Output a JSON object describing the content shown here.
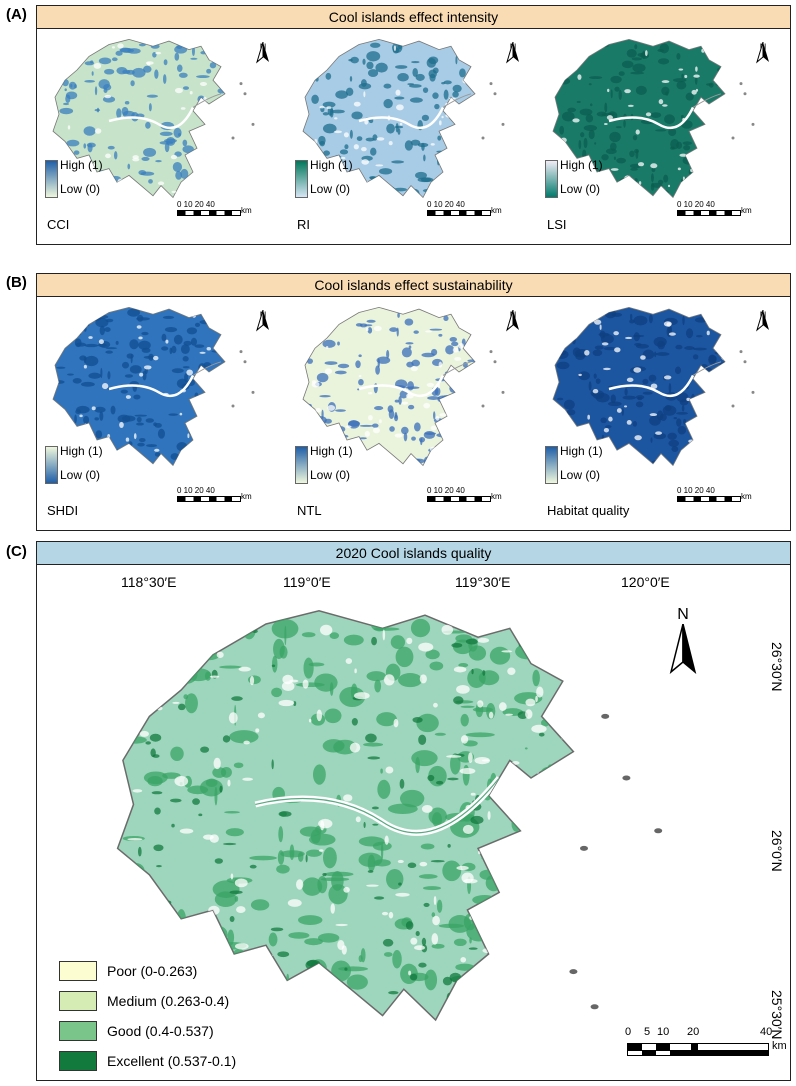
{
  "panels": {
    "a": {
      "label": "(A)",
      "title": "Cool islands effect intensity"
    },
    "b": {
      "label": "(B)",
      "title": "Cool islands effect sustainability"
    },
    "c": {
      "label": "(C)",
      "title": "2020 Cool islands quality"
    }
  },
  "maps": [
    {
      "name": "CCI",
      "high": "High (1)",
      "low": "Low (0)",
      "ramp_top": "#1f5fa8",
      "ramp_bottom": "#eef7dd",
      "fill": "#c7e3c9",
      "dark": "#3a7fbd"
    },
    {
      "name": "RI",
      "high": "High (1)",
      "low": "Low (0)",
      "ramp_top": "#00775a",
      "ramp_bottom": "#d6e6f4",
      "fill": "#a9cce6",
      "dark": "#1e6e8c"
    },
    {
      "name": "LSI",
      "high": "High (1)",
      "low": "Low (0)",
      "ramp_top": "#f1ecf6",
      "ramp_bottom": "#017a6c",
      "fill": "#1a7a68",
      "dark": "#0b5e50"
    },
    {
      "name": "SHDI",
      "high": "High (1)",
      "low": "Low (0)",
      "ramp_top": "#eef7dd",
      "ramp_bottom": "#1f5fa8",
      "fill": "#2f74bc",
      "dark": "#124d91"
    },
    {
      "name": "NTL",
      "high": "High (1)",
      "low": "Low (0)",
      "ramp_top": "#1f5fa8",
      "ramp_bottom": "#eef7dd",
      "fill": "#eaf4dc",
      "dark": "#3b6fba"
    },
    {
      "name": "Habitat quality",
      "high": "High (1)",
      "low": "Low (0)",
      "ramp_top": "#1f5fa8",
      "ramp_bottom": "#eef7dd",
      "fill": "#1d56a0",
      "dark": "#0e3f80"
    }
  ],
  "scale_small": {
    "ticks": "0 10 20      40",
    "unit": "km"
  },
  "north": "N",
  "main_map": {
    "lon_labels": [
      "118°30′E",
      "119°0′E",
      "119°30′E",
      "120°0′E"
    ],
    "lat_labels": [
      "26°30′N",
      "26°0′N",
      "25°30′N"
    ],
    "scale_ticks": [
      "0",
      "5",
      "10",
      "20",
      "40"
    ],
    "scale_unit": "km",
    "legend": [
      {
        "label": "Poor (0-0.263)",
        "color": "#fdfdd2"
      },
      {
        "label": "Medium (0.263-0.4)",
        "color": "#d5ecb4"
      },
      {
        "label": "Good (0.4-0.537)",
        "color": "#7ac58a"
      },
      {
        "label": "Excellent (0.537-0.1)",
        "color": "#127a3d"
      }
    ],
    "land_color": "#9ed6bd",
    "dense_color": "#3aa466",
    "outline_color": "#6b6b6b"
  }
}
